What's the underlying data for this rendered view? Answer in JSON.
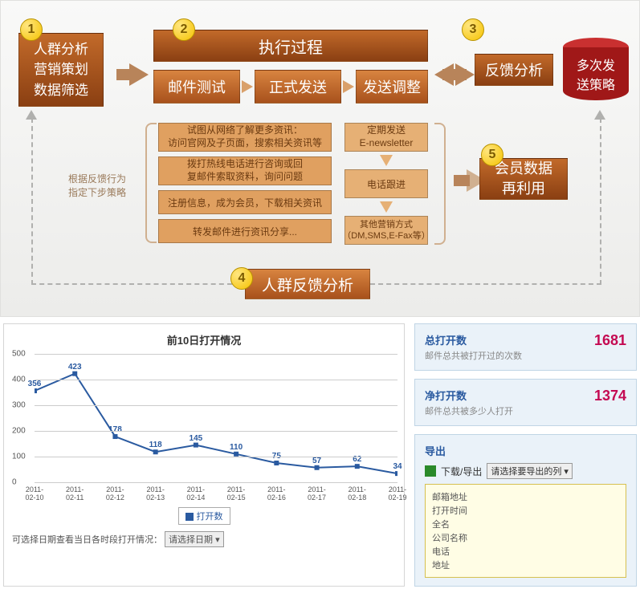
{
  "diagram": {
    "badges": [
      "1",
      "2",
      "3",
      "4",
      "5"
    ],
    "step1": "人群分析\n营销策划\n数据筛选",
    "step2_header": "执行过程",
    "step2_sub": [
      "邮件测试",
      "正式发送",
      "发送调整"
    ],
    "step3": "反馈分析",
    "cylinder": "多次发\n送策略",
    "step5": "会员数据\n再利用",
    "left_actions": [
      "试图从网络了解更多资讯：\n访问官网及子页面，搜索相关资讯等",
      "拨打热线电话进行咨询或回\n复邮件索取资料，询问问题",
      "注册信息，成为会员，下载相关资讯",
      "转发邮件进行资讯分享..."
    ],
    "right_actions": [
      "定期发送\nE-newsletter",
      "电话跟进",
      "其他营销方式\n（DM,SMS,E-Fax等）"
    ],
    "note": "根据反馈行为\n指定下步策略",
    "step4": "人群反馈分析",
    "colors": {
      "box_dark_top": "#c26a2a",
      "box_dark_bot": "#8a3f12",
      "box_mid_top": "#d88440",
      "box_mid_bot": "#a8511c",
      "box_light": "#e0a060",
      "box_light2": "#e6b075",
      "arrow": "#b8845a",
      "cyl_top": "#c93030",
      "cyl_body": "#a01818",
      "badge_grad_a": "#ffe680",
      "badge_grad_b": "#f5c200"
    }
  },
  "chart": {
    "title": "前10日打开情况",
    "type": "line",
    "x": [
      "2011-\n02-10",
      "2011-\n02-11",
      "2011-\n02-12",
      "2011-\n02-13",
      "2011-\n02-14",
      "2011-\n02-15",
      "2011-\n02-16",
      "2011-\n02-17",
      "2011-\n02-18",
      "2011-\n02-19"
    ],
    "y": [
      356,
      423,
      178,
      118,
      145,
      110,
      75,
      57,
      62,
      34
    ],
    "ylim": [
      0,
      500
    ],
    "ytick_step": 100,
    "line_color": "#2a5aa0",
    "marker": "square",
    "marker_size": 6,
    "grid_color": "#cccccc",
    "background": "#ffffff",
    "legend_label": "打开数",
    "footer_label": "可选择日期查看当日各时段打开情况：",
    "footer_select": "请选择日期",
    "title_fontsize": 13,
    "label_fontsize": 10
  },
  "stats": {
    "s1": {
      "title": "总打开数",
      "desc": "邮件总共被打开过的次数",
      "value": "1681"
    },
    "s2": {
      "title": "净打开数",
      "desc": "邮件总共被多少人打开",
      "value": "1374"
    },
    "export": {
      "title": "导出",
      "row_label": "下载/导出",
      "select": "请选择要导出的列",
      "fields": [
        "邮箱地址",
        "打开时间",
        "全名",
        "公司名称",
        "电话",
        "地址"
      ]
    }
  }
}
